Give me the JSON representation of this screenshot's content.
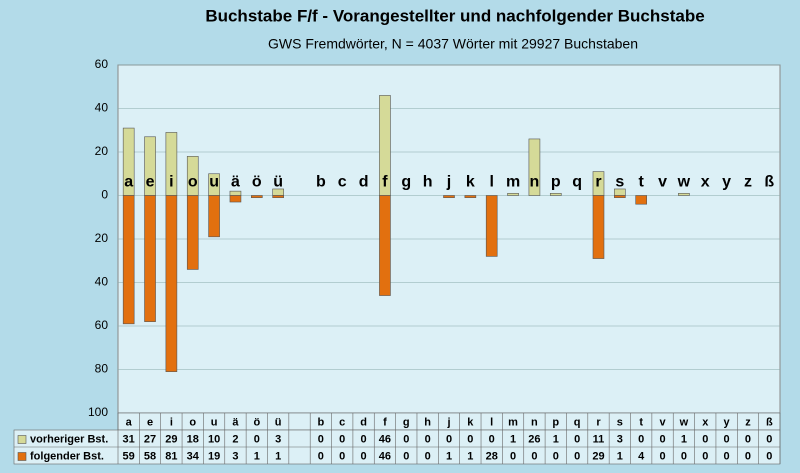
{
  "chart_data": {
    "type": "bar",
    "title": "Buchstabe F/f - Vorangestellter und nachfolgender Buchstabe",
    "subtitle": "GWS Fremdwörter,  N = 4037 Wörter mit 29927 Buchstaben",
    "categories": [
      "a",
      "e",
      "i",
      "o",
      "u",
      "ä",
      "ö",
      "ü",
      null,
      "b",
      "c",
      "d",
      "f",
      "g",
      "h",
      "j",
      "k",
      "l",
      "m",
      "n",
      "p",
      "q",
      "r",
      "s",
      "t",
      "v",
      "w",
      "x",
      "y",
      "z",
      "ß"
    ],
    "series": [
      {
        "name": "vorheriger Bst.",
        "color": "#d5da98",
        "values": [
          31,
          27,
          29,
          18,
          10,
          2,
          0,
          3,
          null,
          0,
          0,
          0,
          46,
          0,
          0,
          0,
          0,
          0,
          1,
          26,
          1,
          0,
          11,
          3,
          0,
          0,
          1,
          0,
          0,
          0,
          0
        ]
      },
      {
        "name": "folgender Bst.",
        "color": "#e2700f",
        "values": [
          -59,
          -58,
          -81,
          -34,
          -19,
          -3,
          -1,
          -1,
          null,
          0,
          0,
          0,
          -46,
          0,
          0,
          -1,
          -1,
          -28,
          0,
          0,
          0,
          0,
          -29,
          -1,
          -4,
          0,
          0,
          0,
          0,
          0,
          0
        ],
        "value_labels": [
          "59",
          "58",
          "81",
          "34",
          "19",
          "3",
          "1",
          "1",
          null,
          "0",
          "0",
          "0",
          "46",
          "0",
          "0",
          "1",
          "1",
          "28",
          "0",
          "0",
          "0",
          "0",
          "29",
          "1",
          "4",
          "0",
          "0",
          "0",
          "0",
          "0",
          "0"
        ]
      }
    ],
    "ylim": [
      -100,
      60
    ],
    "yticks": [
      60,
      40,
      20,
      0,
      {
        "value": -20,
        "label": "20"
      },
      {
        "value": -40,
        "label": "40"
      },
      {
        "value": -60,
        "label": "60"
      },
      {
        "value": -80,
        "label": "80"
      },
      {
        "value": -100,
        "label": "100"
      }
    ],
    "grid": true
  }
}
